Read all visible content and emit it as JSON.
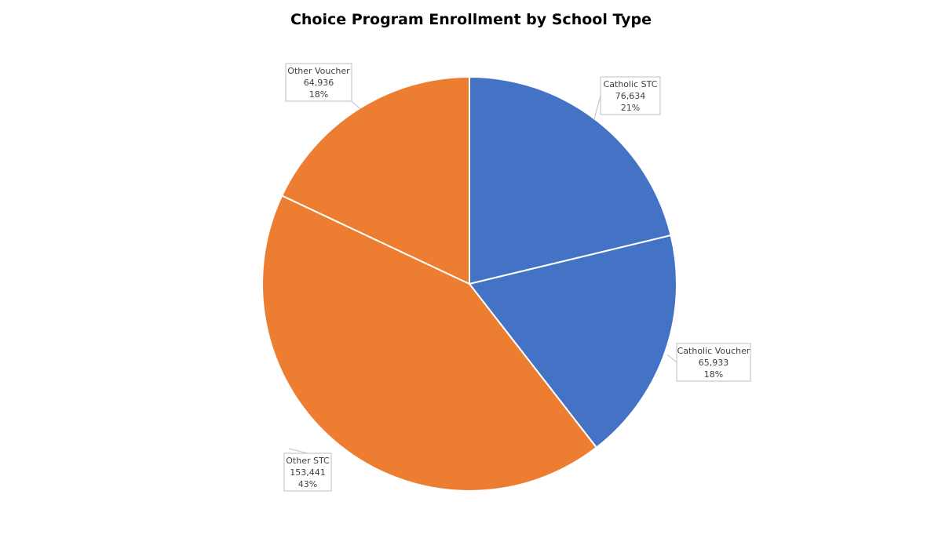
{
  "chart_data": {
    "type": "pie",
    "title": "Choice Program Enrollment by School Type",
    "slices": [
      {
        "label": "Catholic STC",
        "value": 76634,
        "value_text": "76,634",
        "percent_text": "21%",
        "color": "#4472C4"
      },
      {
        "label": "Catholic Voucher",
        "value": 65933,
        "value_text": "65,933",
        "percent_text": "18%",
        "color": "#4472C4"
      },
      {
        "label": "Other STC",
        "value": 153441,
        "value_text": "153,441",
        "percent_text": "43%",
        "color": "#ED7D31"
      },
      {
        "label": "Other Voucher",
        "value": 64936,
        "value_text": "64,936",
        "percent_text": "18%",
        "color": "#ED7D31"
      }
    ],
    "start_angle": "12 o'clock",
    "direction": "clockwise"
  }
}
